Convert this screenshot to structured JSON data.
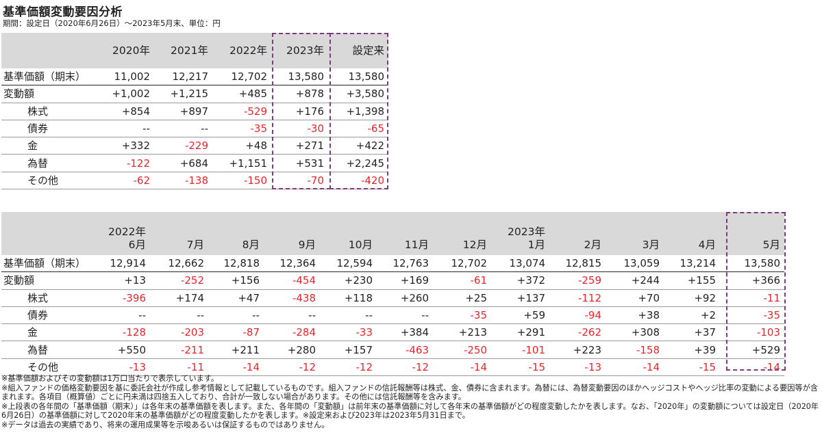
{
  "title": "基準価額変動要因分析",
  "subtitle": "期間：設定日（2020年6月26日）～2023年5月末、単位：円",
  "annual": {
    "columns": [
      "2020年",
      "2021年",
      "2022年",
      "2023年",
      "設定来"
    ],
    "rows": [
      {
        "label": "基準価額（期末）",
        "values": [
          "11,002",
          "12,217",
          "12,702",
          "13,580",
          "13,580"
        ]
      },
      {
        "label": "変動額",
        "values": [
          "+1,002",
          "+1,215",
          "+485",
          "+878",
          "+3,580"
        ]
      },
      {
        "label": "株式",
        "values": [
          "+854",
          "+897",
          "-529",
          "+176",
          "+1,398"
        ]
      },
      {
        "label": "債券",
        "values": [
          "--",
          "--",
          "-35",
          "-30",
          "-65"
        ]
      },
      {
        "label": "金",
        "values": [
          "+332",
          "-229",
          "+48",
          "+271",
          "+422"
        ]
      },
      {
        "label": "為替",
        "values": [
          "-122",
          "+684",
          "+1,151",
          "+531",
          "+2,245"
        ]
      },
      {
        "label": "その他",
        "values": [
          "-62",
          "-138",
          "-150",
          "-70",
          "-420"
        ]
      }
    ]
  },
  "monthly": {
    "year_labels": [
      "2022年",
      "2023年"
    ],
    "columns": [
      "6月",
      "7月",
      "8月",
      "9月",
      "10月",
      "11月",
      "12月",
      "1月",
      "2月",
      "3月",
      "4月",
      "5月"
    ],
    "rows": [
      {
        "label": "基準価額（期末）",
        "values": [
          "12,914",
          "12,662",
          "12,818",
          "12,364",
          "12,594",
          "12,763",
          "12,702",
          "13,074",
          "12,815",
          "13,059",
          "13,214",
          "13,580"
        ]
      },
      {
        "label": "変動額",
        "values": [
          "+13",
          "-252",
          "+156",
          "-454",
          "+230",
          "+169",
          "-61",
          "+372",
          "-259",
          "+244",
          "+155",
          "+366"
        ]
      },
      {
        "label": "株式",
        "values": [
          "-396",
          "+174",
          "+47",
          "-438",
          "+118",
          "+260",
          "+25",
          "+137",
          "-112",
          "+70",
          "+92",
          "-11"
        ]
      },
      {
        "label": "債券",
        "values": [
          "--",
          "--",
          "--",
          "--",
          "--",
          "--",
          "-35",
          "+59",
          "-94",
          "+38",
          "+2",
          "-35"
        ]
      },
      {
        "label": "金",
        "values": [
          "-128",
          "-203",
          "-87",
          "-284",
          "-33",
          "+384",
          "+213",
          "+291",
          "-262",
          "+308",
          "+37",
          "-103"
        ]
      },
      {
        "label": "為替",
        "values": [
          "+550",
          "-211",
          "+211",
          "+280",
          "+157",
          "-463",
          "-250",
          "-101",
          "+223",
          "-158",
          "+39",
          "+529"
        ]
      },
      {
        "label": "その他",
        "values": [
          "-13",
          "-11",
          "-14",
          "-12",
          "-12",
          "-12",
          "-14",
          "-15",
          "-13",
          "-14",
          "-15",
          "-14"
        ]
      }
    ]
  },
  "notes": [
    "※基準価額およびその変動額は1万口当たりで表示しています。",
    "※組入ファンドの価格変動要因を基に委託会社が作成し参考情報として記載しているものです。組入ファンドの信託報酬等は株式、金、債券に含まれます。為替には、為替変動要因のほかヘッジコストやヘッジ比率の変動による要因等が含まれます。各項目（概算値）ごとに円未満は四捨五入しており、合計が一致しない場合があります。その他には信託報酬等を含みます。",
    "※上段表の各年間の「基準価額（期末）」は各年末の基準価額を表します。また、各年間の「変動額」は前年末の基準価額に対して各年末の基準価額がどの程度変動したかを表します。なお、「2020年」の変動額については設定日（2020年6月26日）の基準価額に対して2020年末の基準価額がどの程度変動したかを表します。※設定来および2023年は2023年5月31日まで。",
    "※データは過去の実績であり、将来の運用成果等を示唆あるいは保証するものではありません。"
  ],
  "colors": {
    "negative": "#e8252b",
    "highlight_border": "#7b3b7e",
    "header_bg": "#d9d9d9"
  }
}
